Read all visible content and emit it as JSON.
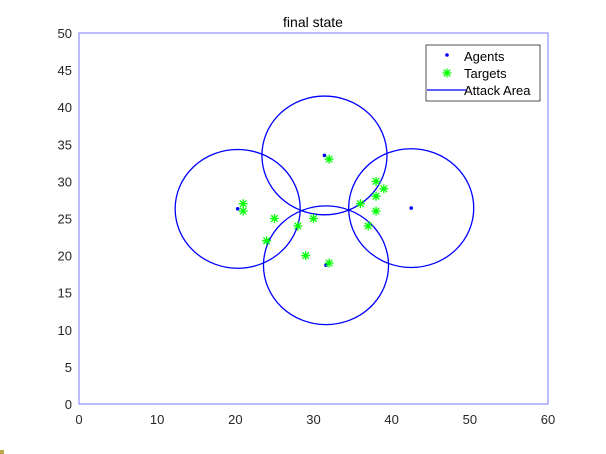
{
  "chart_data": {
    "type": "scatter",
    "title": "final state",
    "xlabel": "",
    "ylabel": "",
    "xlim": [
      0,
      60
    ],
    "ylim": [
      0,
      50
    ],
    "xticks": [
      0,
      10,
      20,
      30,
      40,
      50,
      60
    ],
    "yticks": [
      0,
      5,
      10,
      15,
      20,
      25,
      30,
      35,
      40,
      45,
      50
    ],
    "grid": false,
    "legend_position": "northeast",
    "legend": [
      "Agents",
      "Targets",
      "Attack Area"
    ],
    "series": [
      {
        "name": "Agents",
        "marker": "dot",
        "color": "#0000ff",
        "points": [
          [
            20.3,
            26.3
          ],
          [
            31.4,
            33.5
          ],
          [
            42.5,
            26.4
          ],
          [
            31.6,
            18.7
          ]
        ]
      },
      {
        "name": "Targets",
        "marker": "asterisk",
        "color": "#00ff00",
        "points": [
          [
            21,
            27
          ],
          [
            21,
            26
          ],
          [
            25,
            25
          ],
          [
            28,
            24
          ],
          [
            30,
            25
          ],
          [
            24,
            22
          ],
          [
            29,
            20
          ],
          [
            32,
            19
          ],
          [
            32,
            33
          ],
          [
            38,
            30
          ],
          [
            39,
            29
          ],
          [
            38,
            28
          ],
          [
            36,
            27
          ],
          [
            38,
            26
          ],
          [
            37,
            24
          ]
        ]
      },
      {
        "name": "Attack Area",
        "marker": "circle-line",
        "color": "#0000ff",
        "radius": 8,
        "centers": [
          [
            20.3,
            26.3
          ],
          [
            31.4,
            33.5
          ],
          [
            42.5,
            26.4
          ],
          [
            31.6,
            18.7
          ]
        ]
      }
    ]
  },
  "style": {
    "axes_color": "#7b7bff",
    "legend_border": "#262626",
    "agent_color": "#0000ff",
    "target_color": "#00ff00",
    "circle_color": "#0000ff"
  }
}
